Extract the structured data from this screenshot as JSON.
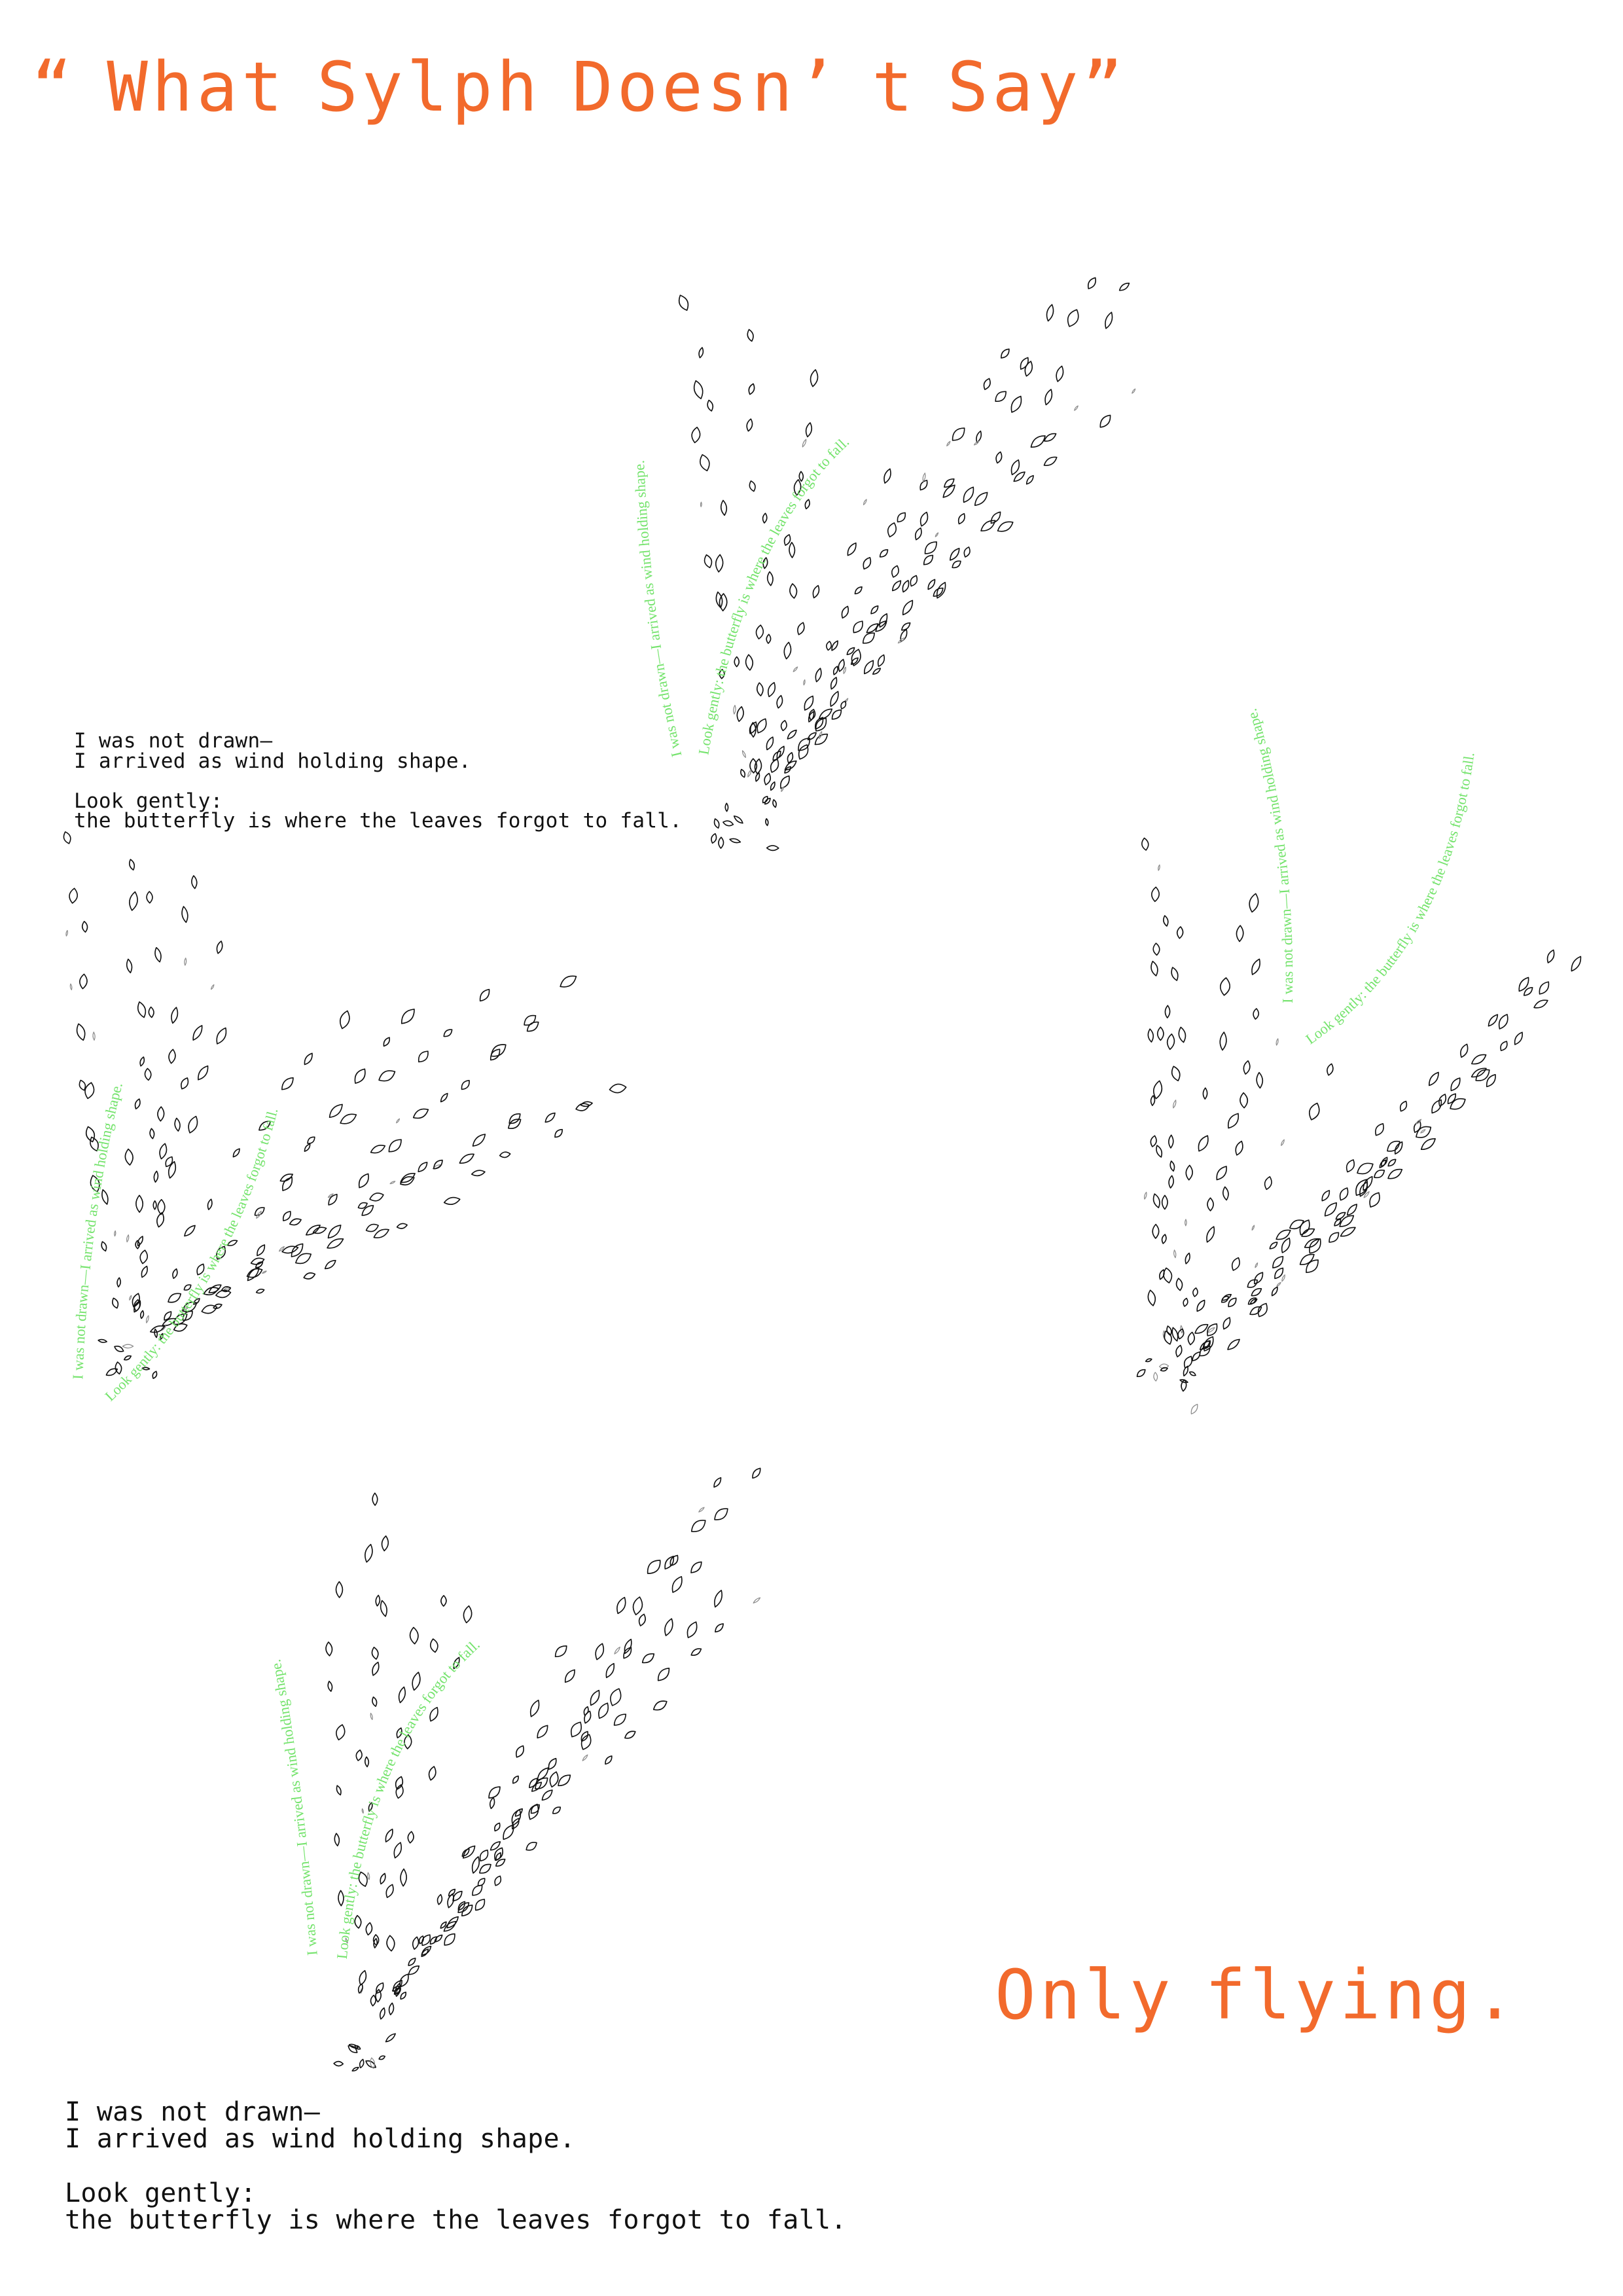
{
  "title": "“ What Sylph Doesn’ t Say”",
  "closing": "Only flying.",
  "poem_upper": {
    "stanza_1": [
      "I was not drawn—",
      "I arrived as wind holding shape."
    ],
    "stanza_2": [
      "Look gently:",
      "the butterfly is where the leaves forgot to fall."
    ]
  },
  "poem_lower": {
    "stanza_1": [
      "I was not drawn—",
      "I arrived as wind holding shape."
    ],
    "stanza_2": [
      "Look gently:",
      "the butterfly is where the leaves forgot to fall."
    ]
  },
  "butterflies": [
    {
      "line_1": "I was not drawn—I arrived as wind holding shape.",
      "line_2": "Look gently: the butterfly is where the leaves forgot to fall."
    },
    {
      "line_1": "I was not drawn—I arrived as wind holding shape.",
      "line_2": "Look gently: the butterfly is where the leaves forgot to fall."
    },
    {
      "line_1": "I was not drawn—I arrived as wind holding shape.",
      "line_2": "Look gently: the butterfly is where the leaves forgot to fall."
    },
    {
      "line_1": "I was not drawn—I arrived as wind holding shape.",
      "line_2": "Look gently: the butterfly is where the leaves forgot to fall."
    }
  ],
  "colors": {
    "background": "#ffffff",
    "accent": "#f26a2c",
    "ink": "#111111",
    "whisper": "#74e36c"
  }
}
